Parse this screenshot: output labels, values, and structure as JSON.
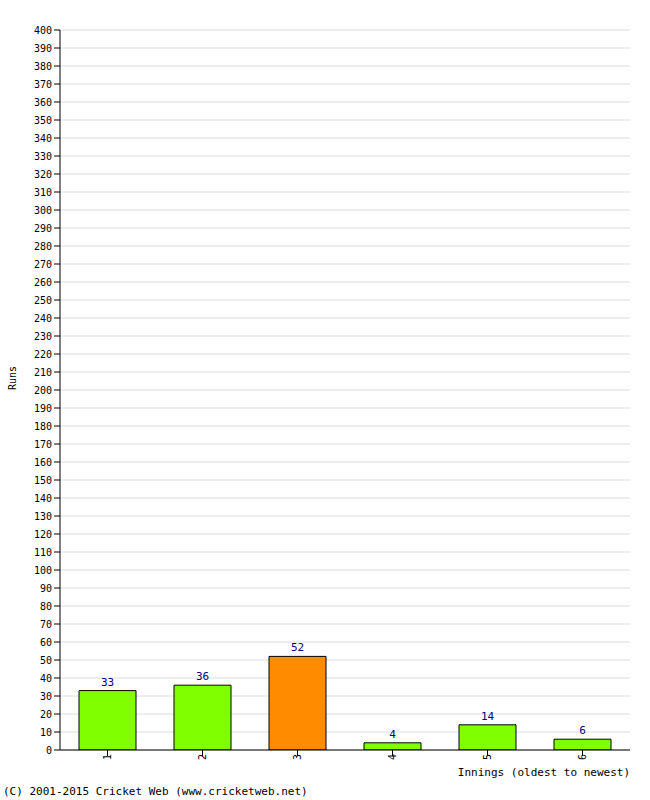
{
  "chart_data": {
    "type": "bar",
    "categories": [
      "1",
      "2",
      "3",
      "4",
      "5",
      "6"
    ],
    "values": [
      33,
      36,
      52,
      4,
      14,
      6
    ],
    "colors": [
      "#80ff00",
      "#80ff00",
      "#ff8c00",
      "#80ff00",
      "#80ff00",
      "#80ff00"
    ],
    "x_label": "Innings (oldest to newest)",
    "y_label": "Runs",
    "annotations": [
      "(C) 2001-2015 Cricket Web (www.cricketweb.net)"
    ],
    "ylim": [
      0,
      400
    ],
    "yticks": [
      0,
      10,
      20,
      30,
      40,
      50,
      60,
      70,
      80,
      90,
      100,
      110,
      120,
      130,
      140,
      150,
      160,
      170,
      180,
      190,
      200,
      210,
      220,
      230,
      240,
      250,
      260,
      270,
      280,
      290,
      300,
      310,
      320,
      330,
      340,
      350,
      360,
      370,
      380,
      390,
      400
    ],
    "grid": true,
    "data_labels": true
  }
}
